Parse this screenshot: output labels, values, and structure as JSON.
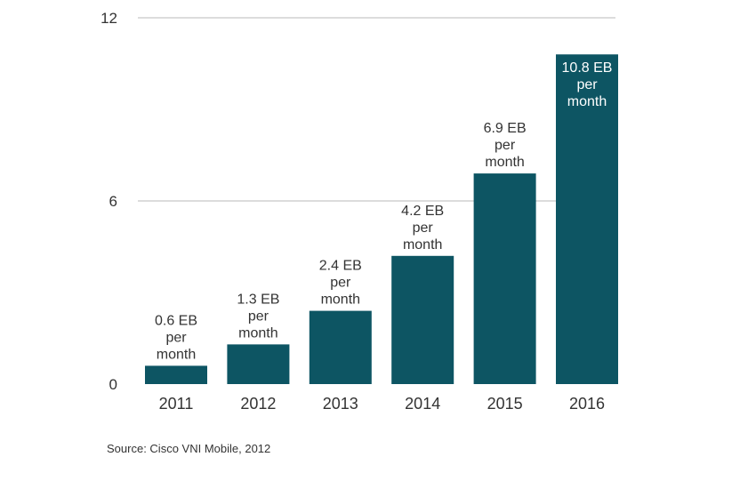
{
  "chart_data": {
    "type": "bar",
    "categories": [
      "2011",
      "2012",
      "2013",
      "2014",
      "2015",
      "2016"
    ],
    "values": [
      0.6,
      1.3,
      2.4,
      4.2,
      6.9,
      10.8
    ],
    "data_labels": [
      [
        "0.6 EB",
        "per",
        "month"
      ],
      [
        "1.3 EB",
        "per",
        "month"
      ],
      [
        "2.4 EB",
        "per",
        "month"
      ],
      [
        "4.2 EB",
        "per",
        "month"
      ],
      [
        "6.9 EB",
        "per",
        "month"
      ],
      [
        "10.8 EB",
        "per",
        "month"
      ]
    ],
    "y_ticks": [
      0,
      6,
      12
    ],
    "ylim": [
      0,
      12
    ],
    "title": "",
    "xlabel": "",
    "ylabel": "",
    "grid": true,
    "bar_color": "#0d5563",
    "grid_color": "#d0d0d0",
    "label_color": "#333333",
    "inside_label_color": "#ffffff"
  },
  "source": "Source: Cisco VNI Mobile, 2012"
}
